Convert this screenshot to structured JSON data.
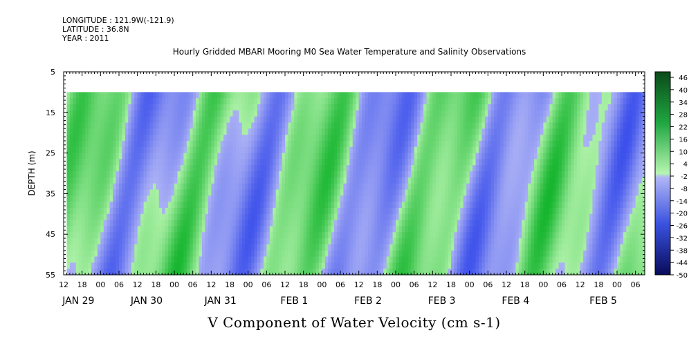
{
  "header": {
    "longitude": "LONGITUDE : 121.9W(-121.9)",
    "latitude": "LATITUDE : 36.8N",
    "year": "YEAR : 2011",
    "title": "Hourly Gridded MBARI Mooring M0 Sea Water Temperature and Salinity Observations"
  },
  "chart_data": {
    "type": "heatmap",
    "title": "V Component of Water Velocity (cm s-1)",
    "ylabel": "DEPTH (m)",
    "xlabel": "",
    "y_axis": {
      "ticks": [
        5,
        15,
        25,
        35,
        45,
        55
      ],
      "range": [
        5,
        55
      ],
      "inverted": true
    },
    "x_axis": {
      "hour_ticks": [
        "12",
        "18",
        "00",
        "06",
        "12",
        "18",
        "00",
        "06",
        "12",
        "18",
        "00",
        "06",
        "12",
        "18",
        "00",
        "06",
        "12",
        "18",
        "00",
        "06",
        "12",
        "18",
        "00",
        "06",
        "12",
        "18",
        "00",
        "06",
        "12",
        "18",
        "00",
        "06"
      ],
      "day_labels": [
        "JAN 29",
        "JAN 30",
        "JAN 31",
        "FEB  1",
        "FEB  2",
        "FEB  3",
        "FEB  4",
        "FEB  5"
      ],
      "start": "2011-01-28 12:00",
      "end": "2011-02-05 09:00"
    },
    "data_extent": {
      "time_start": "2011-01-28 13:00",
      "depth_top": 10,
      "depth_bottom": 55
    },
    "colorbar": {
      "tick_labels": [
        "46",
        "40",
        "34",
        "28",
        "22",
        "16",
        "10",
        "4",
        "-2",
        "-8",
        "-14",
        "-20",
        "-26",
        "-32",
        "-38",
        "-44",
        "-50"
      ],
      "range": [
        -50,
        50
      ]
    }
  },
  "colors": {
    "strong_negative": "#0a1a7a",
    "negative": "#7f8ff0",
    "near_zero": "#a8b0f5",
    "positive": "#9ef0a0",
    "strong_positive": "#0b4a1a"
  }
}
